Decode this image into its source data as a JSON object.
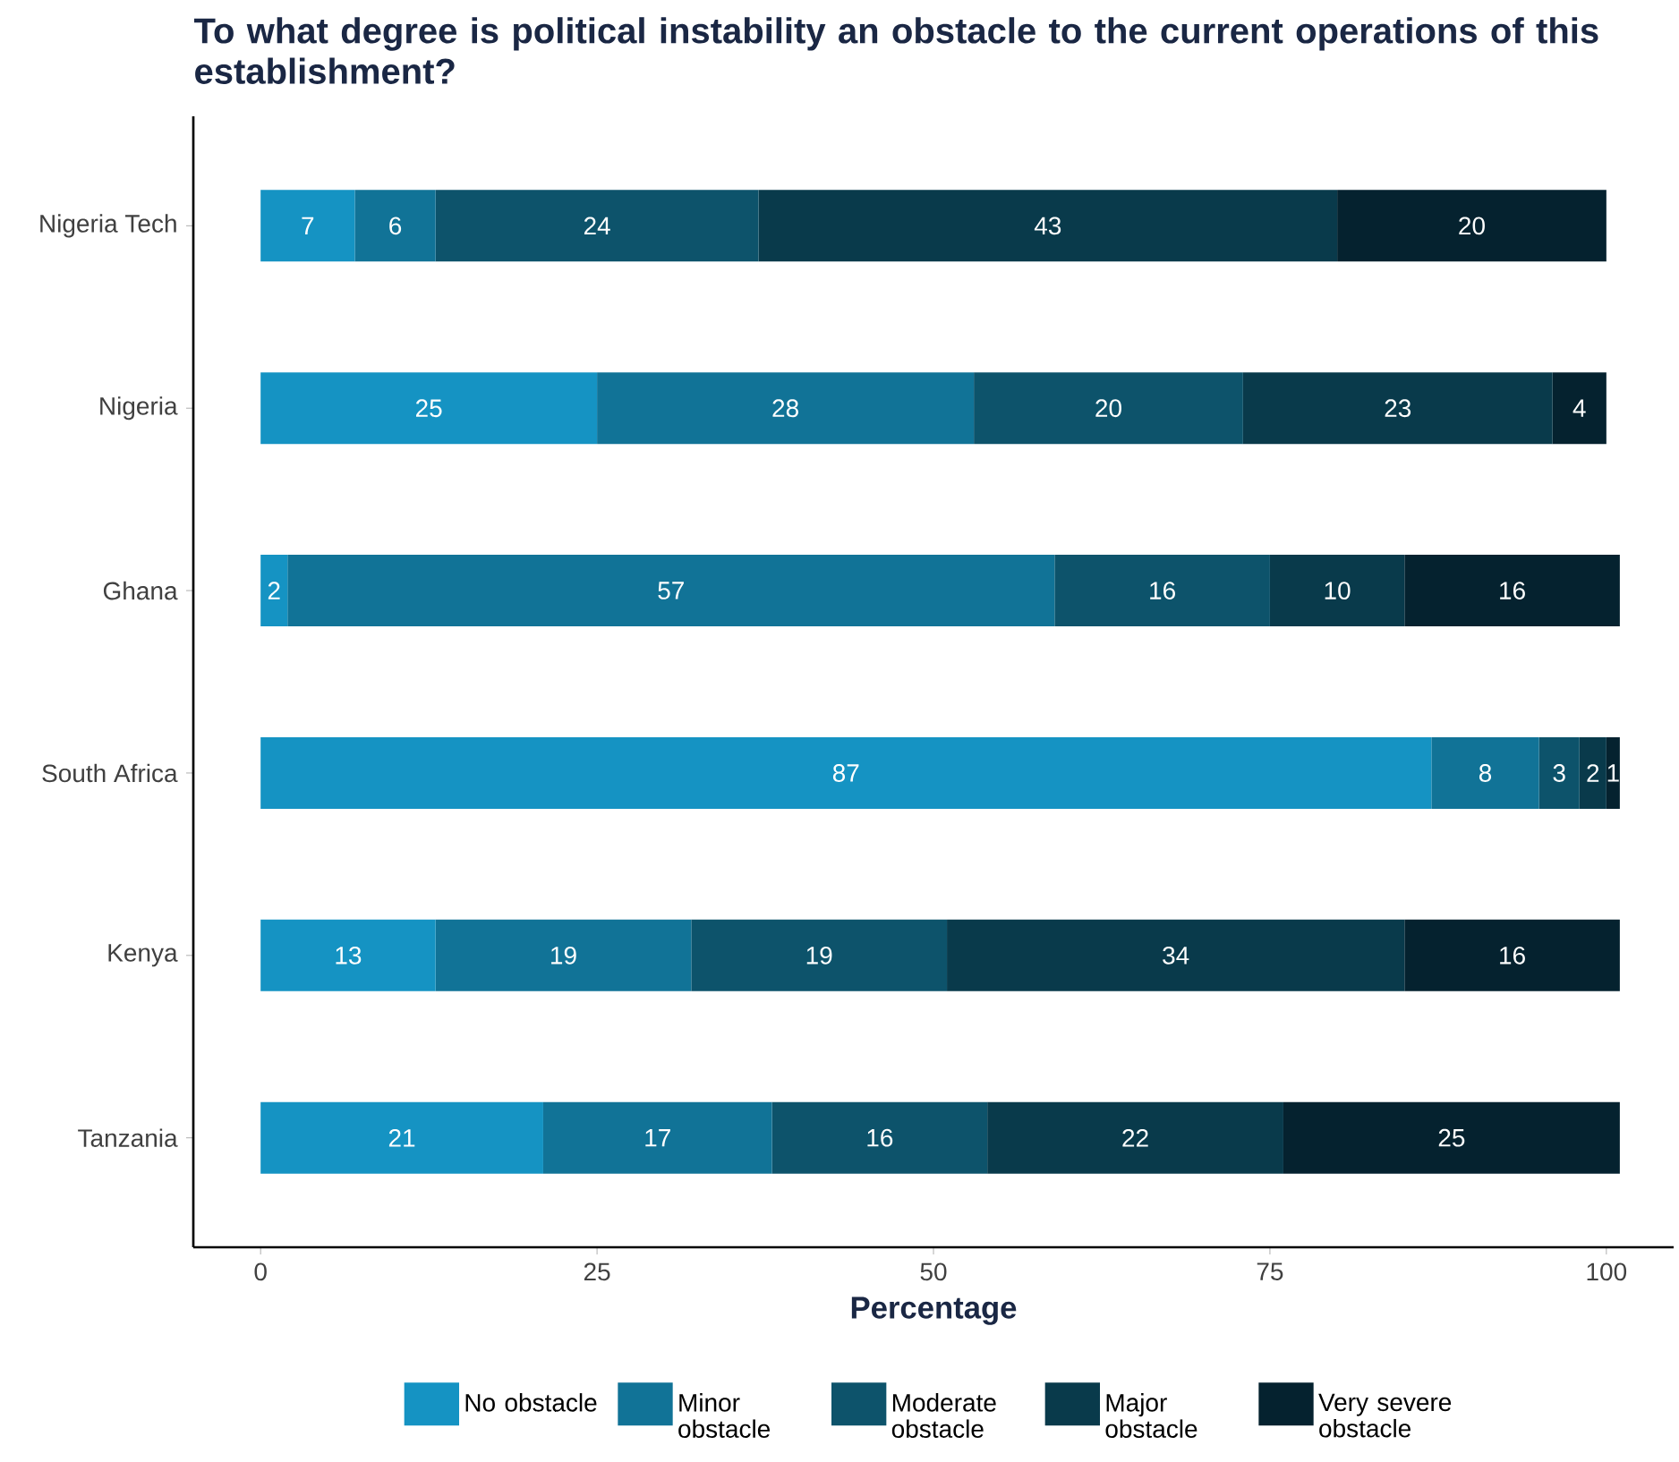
{
  "chart_data": {
    "type": "bar",
    "orientation": "horizontal",
    "stacked": true,
    "title": "To what degree is political instability an obstacle to the current operations of this establishment?",
    "xlabel": "Percentage",
    "categories": [
      "Nigeria Tech",
      "Nigeria",
      "Ghana",
      "South Africa",
      "Kenya",
      "Tanzania"
    ],
    "xlim": [
      -5,
      105
    ],
    "xticks": [
      0,
      25,
      50,
      75,
      100
    ],
    "legend": "bottom",
    "data_labels": true,
    "series": [
      {
        "name": "No obstacle",
        "color": "#1593c3",
        "values": [
          7,
          25,
          2,
          87,
          13,
          21
        ]
      },
      {
        "name": "Minor obstacle",
        "color": "#117397",
        "values": [
          6,
          28,
          57,
          8,
          19,
          17
        ]
      },
      {
        "name": "Moderate obstacle",
        "color": "#0d536b",
        "values": [
          24,
          20,
          16,
          3,
          19,
          16
        ]
      },
      {
        "name": "Major obstacle",
        "color": "#093a4b",
        "values": [
          43,
          23,
          10,
          2,
          34,
          22
        ]
      },
      {
        "name": "Very severe obstacle",
        "color": "#05222f",
        "values": [
          20,
          4,
          16,
          1,
          16,
          25
        ]
      }
    ]
  }
}
